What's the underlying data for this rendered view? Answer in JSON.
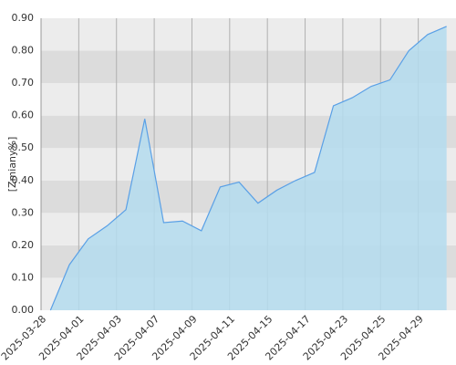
{
  "chart_data": {
    "type": "area",
    "y_label": "[Zmiany%]",
    "categories": [
      "2025-03-28",
      null,
      "2025-04-01",
      null,
      "2025-04-03",
      null,
      "2025-04-07",
      null,
      "2025-04-09",
      null,
      "2025-04-11",
      null,
      "2025-04-15",
      null,
      "2025-04-17",
      null,
      "2025-04-23",
      null,
      "2025-04-25",
      null,
      "2025-04-29",
      null
    ],
    "values": [
      0.0,
      0.14,
      0.22,
      0.26,
      0.31,
      0.59,
      0.27,
      0.275,
      0.245,
      0.38,
      0.395,
      0.33,
      0.37,
      0.4,
      0.425,
      0.63,
      0.655,
      0.69,
      0.71,
      0.8,
      0.85,
      0.875
    ],
    "color": "#5aa0e6",
    "fill": "#b4dcee",
    "ylim": [
      0,
      0.9
    ],
    "yticks": [
      {
        "value": 0,
        "label": "0.00"
      },
      {
        "value": 0.1,
        "label": "0.10"
      },
      {
        "value": 0.2,
        "label": "0.20"
      },
      {
        "value": 0.3,
        "label": "0.30"
      },
      {
        "value": 0.4,
        "label": "0.40"
      },
      {
        "value": 0.5,
        "label": "0.50"
      },
      {
        "value": 0.6,
        "label": "0.60"
      },
      {
        "value": 0.7,
        "label": "0.70"
      },
      {
        "value": 0.8,
        "label": "0.80"
      },
      {
        "value": 0.9,
        "label": "0.90"
      }
    ],
    "grid": true
  }
}
